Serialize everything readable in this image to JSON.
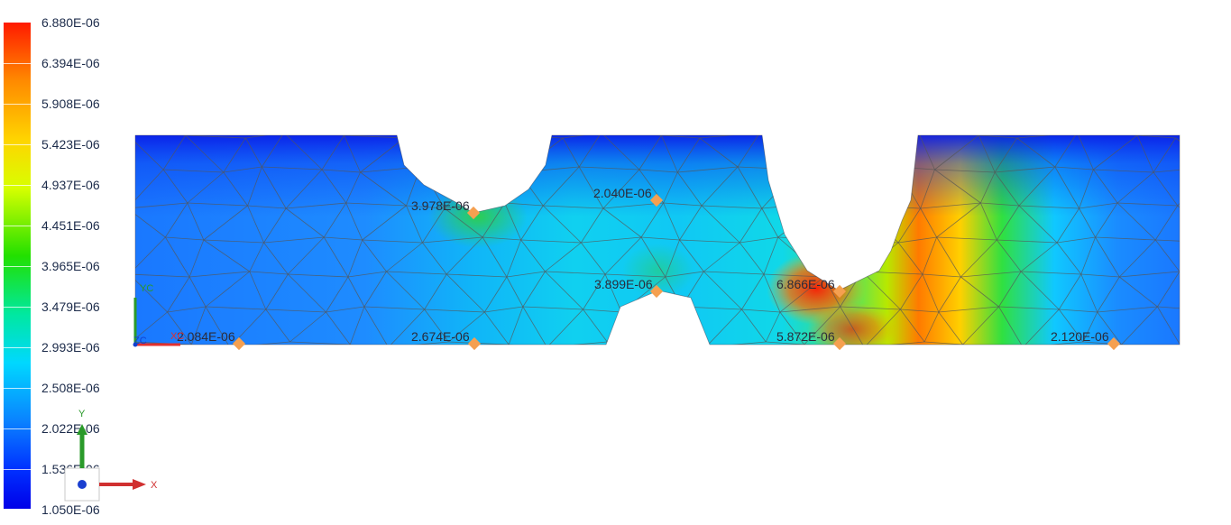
{
  "legend": {
    "labels": [
      "6.880E-06",
      "6.394E-06",
      "5.908E-06",
      "5.423E-06",
      "4.937E-06",
      "4.451E-06",
      "3.965E-06",
      "3.479E-06",
      "2.993E-06",
      "2.508E-06",
      "2.022E-06",
      "1.536E-06",
      "1.050E-06"
    ]
  },
  "probes": [
    {
      "value": "3.978E-06"
    },
    {
      "value": "2.040E-06"
    },
    {
      "value": "3.899E-06"
    },
    {
      "value": "6.866E-06"
    },
    {
      "value": "2.084E-06"
    },
    {
      "value": "2.674E-06"
    },
    {
      "value": "5.872E-06"
    },
    {
      "value": "2.120E-06"
    }
  ],
  "triad": {
    "x": "X",
    "y": "Y"
  },
  "origin_triad": {
    "x": "XC",
    "y": "YC",
    "z": "ZC"
  },
  "colors": {
    "mesh": "#555555",
    "probe": "#f5a050",
    "axis_x": "#e03030",
    "axis_y": "#2a9a2a",
    "axis_z": "#1040d0"
  }
}
